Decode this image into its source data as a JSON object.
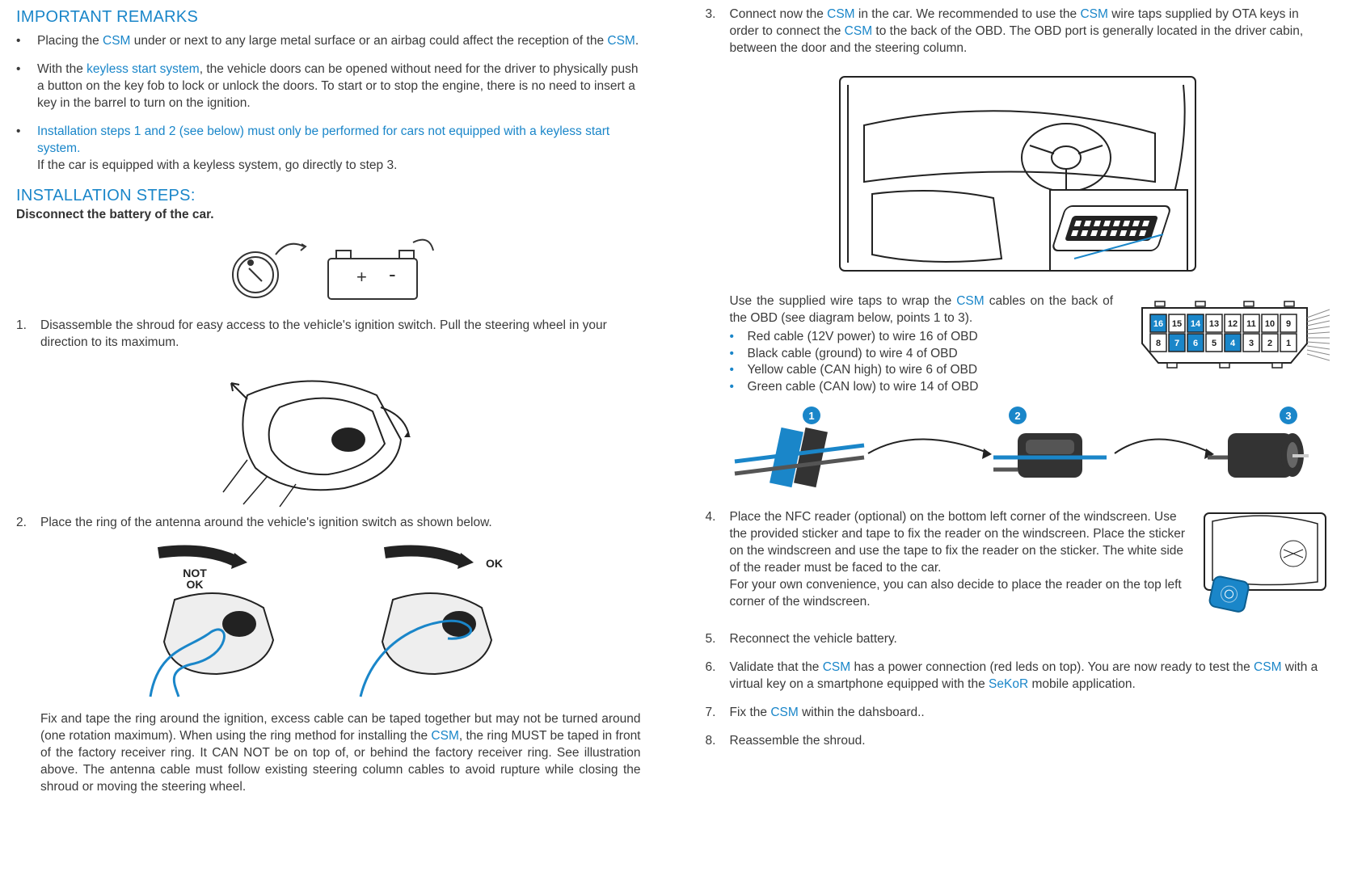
{
  "accent_color": "#1a86c9",
  "text_color": "#3a3a3a",
  "headings": {
    "remarks": "IMPORTANT REMARKS",
    "install": "INSTALLATION STEPS:"
  },
  "disconnect_line": "Disconnect the battery of the car.",
  "remarks": {
    "r1_a": "Placing the ",
    "r1_csm": "CSM",
    "r1_b": " under or next to any large metal surface or an airbag could affect the reception of the ",
    "r1_csm2": "CSM",
    "r1_c": ".",
    "r2_a": "With the ",
    "r2_link": "keyless start system",
    "r2_b": ", the vehicle doors can be opened without need for the driver to physically push a button on the key fob to lock or unlock the doors. To start or to stop the engine, there is no need to insert a key in the barrel to turn on the ignition.",
    "r3_accent_a": "Installation steps 1 and 2 (see below) must only be performed for cars ",
    "r3_accent_bold": "not",
    "r3_accent_b": " equipped with a keyless start system.",
    "r3_plain": "If the car is equipped with a keyless system, go directly to step 3."
  },
  "left_steps": {
    "s1_num": "1.",
    "s1": "Disassemble the shroud for easy access to the vehicle's ignition switch. Pull the steering wheel in your direction to its maximum.",
    "s2_num": "2.",
    "s2": "Place the ring of the antenna around the vehicle's ignition switch as shown below.",
    "ring_para_a": "Fix and tape the ring around the ignition, excess cable can be taped together but may not be turned around (one rotation maximum). When using the ring method for installing the ",
    "ring_csm": "CSM",
    "ring_para_b": ", the ring MUST be taped in front of the factory receiver ring. It CAN NOT be on top of, or behind the factory receiver ring. See illustration above. The antenna cable must follow existing steering column cables to avoid rupture while closing the shroud or moving the steering wheel."
  },
  "right_steps": {
    "s3_num": "3.",
    "s3_a": "Connect now the ",
    "s3_csm1": "CSM",
    "s3_b": " in the car. We recommended to use the ",
    "s3_csm2": "CSM",
    "s3_c": " wire taps supplied by OTA keys in order to connect the ",
    "s3_csm3": "CSM",
    "s3_d": " to the back of the OBD. The OBD port is generally located in the driver cabin, between the door and the steering column.",
    "obd_intro_a": "Use the supplied wire taps to wrap the ",
    "obd_csm": "CSM",
    "obd_intro_b": " cables on the back of the OBD (see diagram below, points 1 to 3).",
    "cable1": "Red cable (12V power) to wire 16 of OBD",
    "cable2": "Black cable (ground) to wire 4 of OBD",
    "cable3": "Yellow cable (CAN high) to wire 6 of OBD",
    "cable4": "Green cable (CAN low) to wire 14 of OBD",
    "s4_num": "4.",
    "s4_a": "Place the NFC reader (optional) on the bottom left corner of the windscreen. Use the  provided sticker and tape to fix the reader on the windscreen. Place the sticker on the windscreen and use the tape to fix the reader on the sticker. The white side of the reader must be faced to the car.",
    "s4_b": "For your own convenience,  you can also decide to place the reader on the top left corner of the windscreen.",
    "s5_num": "5.",
    "s5": "Reconnect the vehicle battery.",
    "s6_num": "6.",
    "s6_a": "Validate that the ",
    "s6_csm1": "CSM",
    "s6_b": " has a power connection (red leds on top).  You are now ready to test the ",
    "s6_csm2": "CSM",
    "s6_c": " with a virtual key on a smartphone equipped with the ",
    "s6_link": "SeKoR",
    "s6_d": " mobile application.",
    "s7_num": "7.",
    "s7_a": "Fix the ",
    "s7_csm": "CSM",
    "s7_b": " within the dahsboard..",
    "s8_num": "8.",
    "s8": "Reassemble the shroud."
  },
  "obd_pins": {
    "top": [
      "16",
      "15",
      "14",
      "13",
      "12",
      "11",
      "10",
      "9"
    ],
    "bot": [
      "8",
      "7",
      "6",
      "5",
      "4",
      "3",
      "2",
      "1"
    ],
    "hl_top": [
      0,
      2
    ],
    "hl_bot": [
      1,
      2,
      4
    ]
  },
  "fig_labels": {
    "not_ok": "NOT OK",
    "ok": "OK"
  }
}
